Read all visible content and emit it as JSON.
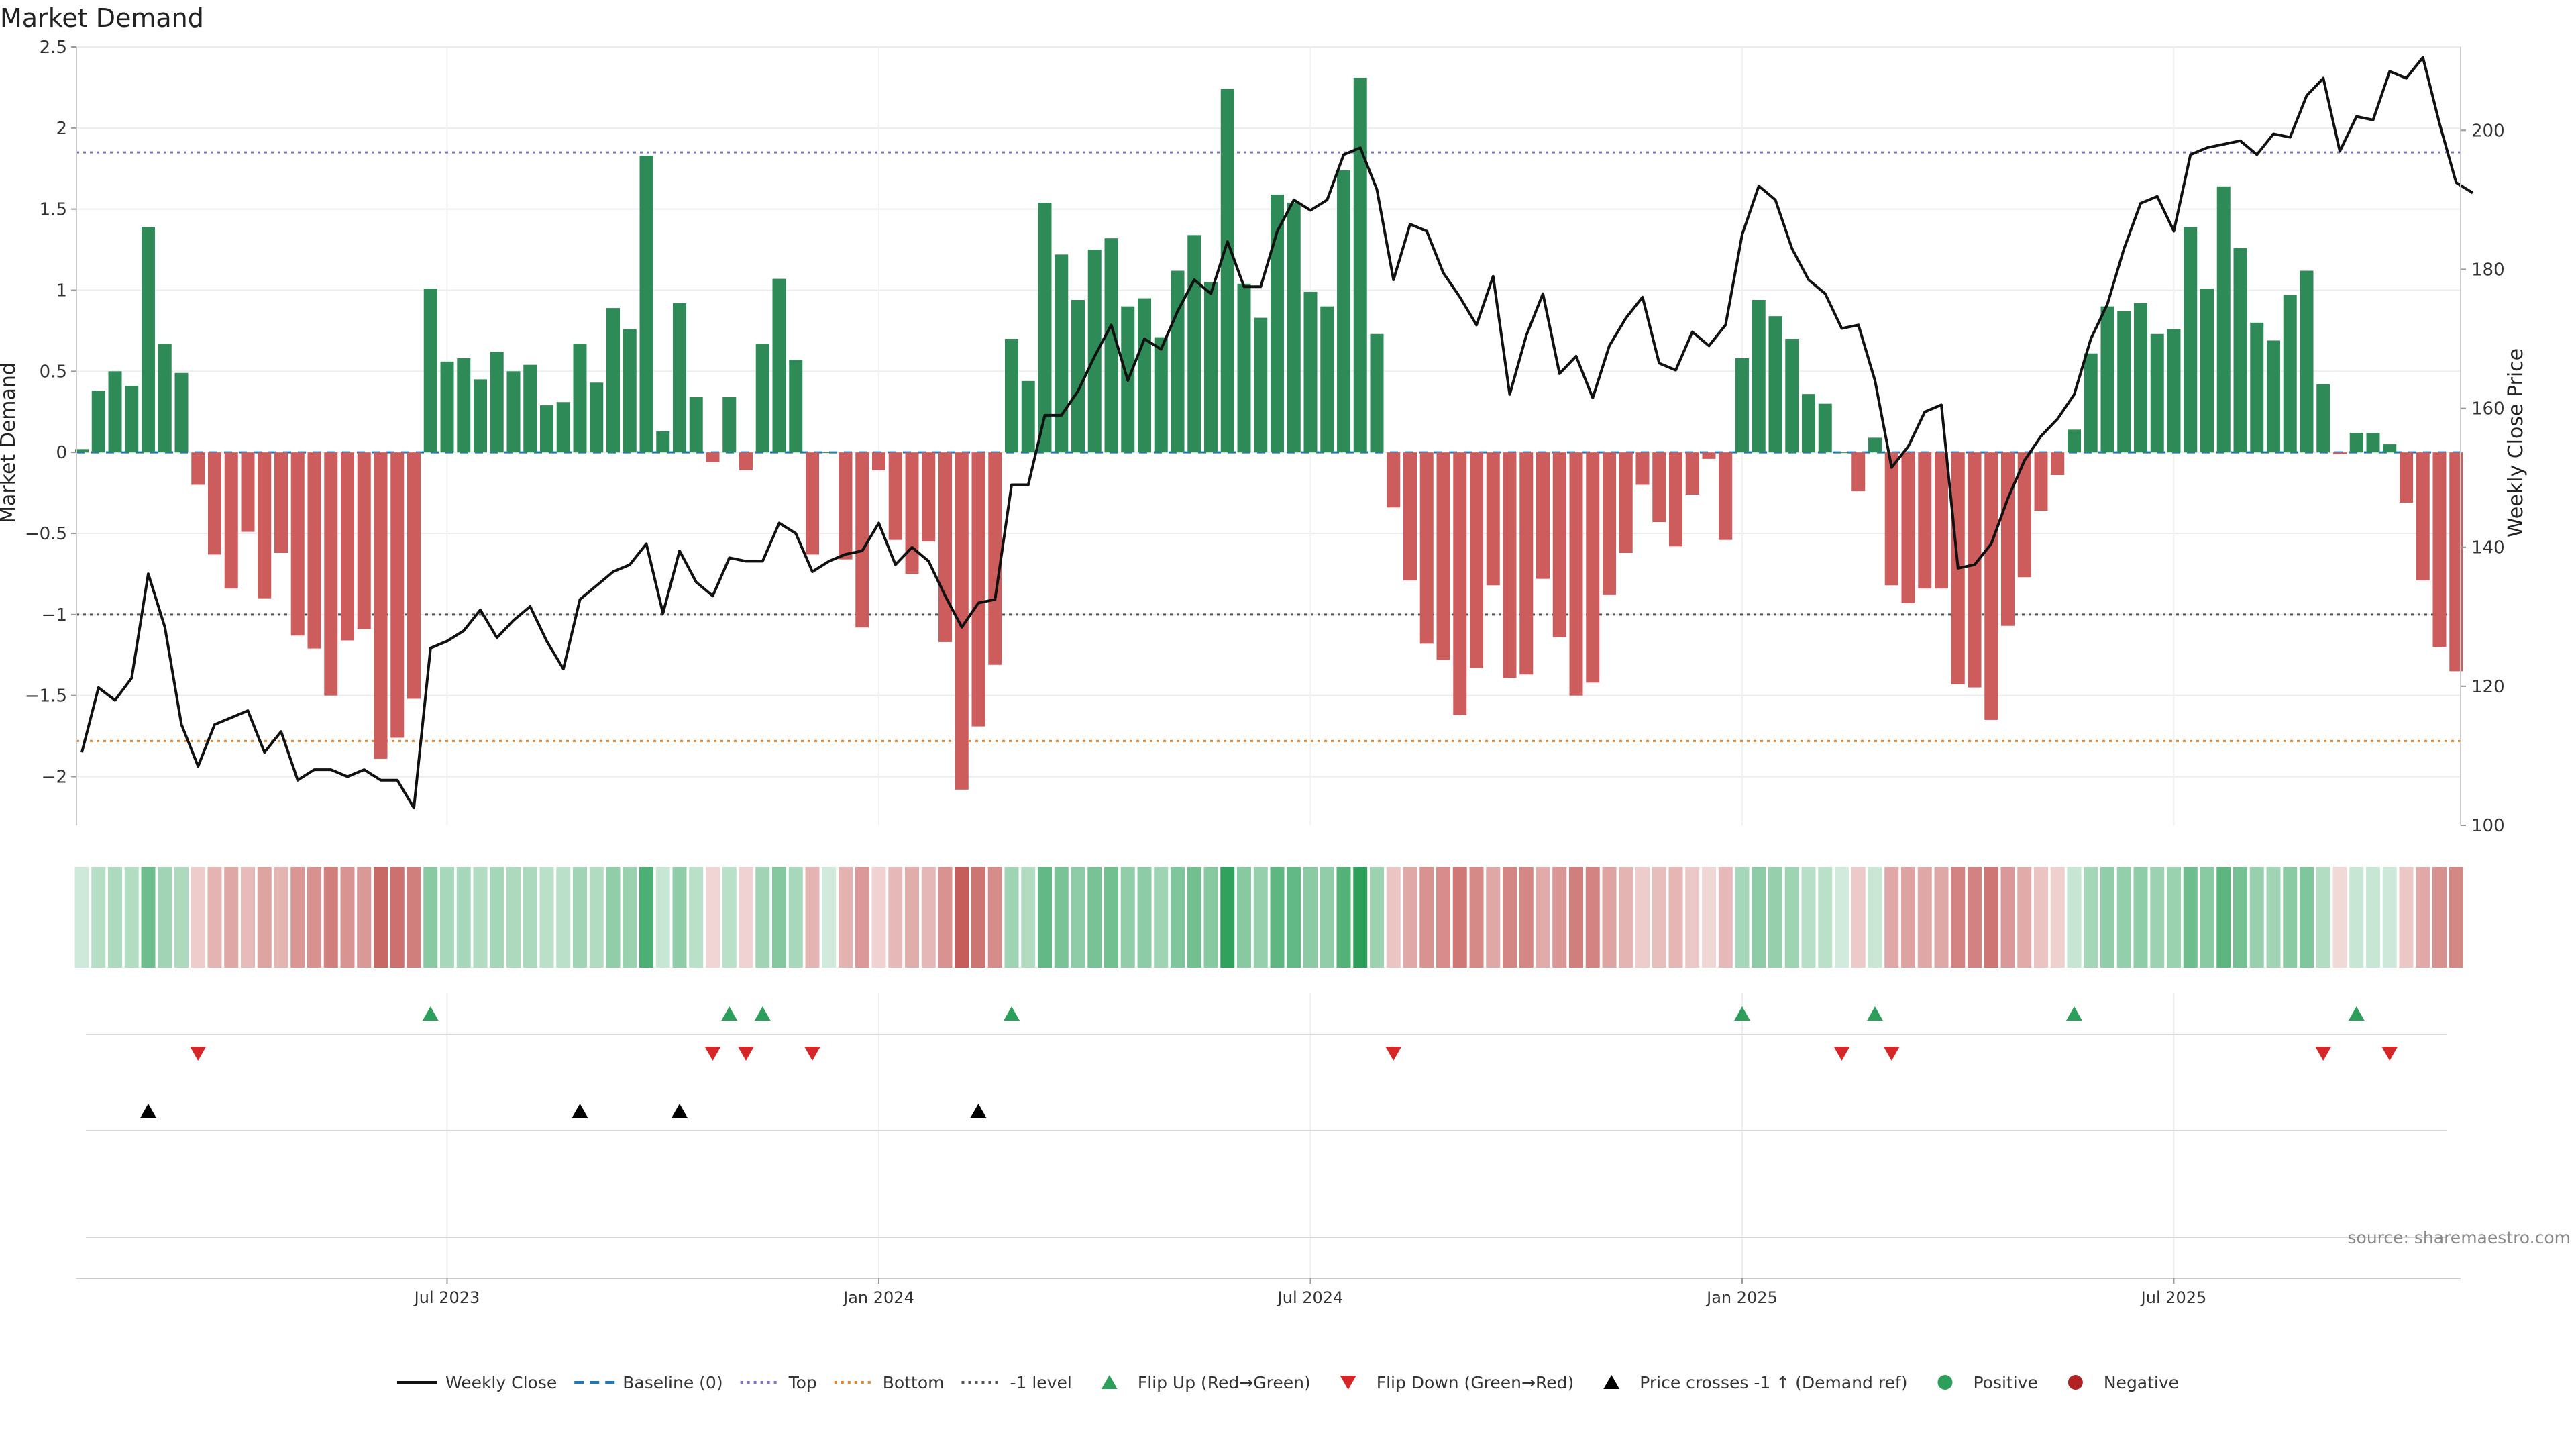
{
  "chart_data": {
    "type": "bar",
    "title": "Market Demand",
    "ylabel": "Market Demand",
    "y2label": "Weekly Close Price",
    "ylim": [
      -2.3,
      2.5
    ],
    "y2lim": [
      100,
      212
    ],
    "y_ticks": [
      {
        "v": 2.5,
        "label": "2.5"
      },
      {
        "v": 2,
        "label": "2"
      },
      {
        "v": 1.5,
        "label": "1.5"
      },
      {
        "v": 1,
        "label": "1"
      },
      {
        "v": 0.5,
        "label": "0.5"
      },
      {
        "v": 0,
        "label": "0"
      },
      {
        "v": -0.5,
        "label": "−0.5"
      },
      {
        "v": -1,
        "label": "−1"
      },
      {
        "v": -1.5,
        "label": "−1.5"
      },
      {
        "v": -2,
        "label": "−2"
      }
    ],
    "y2_ticks": [
      {
        "v": 200,
        "label": "200"
      },
      {
        "v": 180,
        "label": "180"
      },
      {
        "v": 160,
        "label": "160"
      },
      {
        "v": 140,
        "label": "140"
      },
      {
        "v": 120,
        "label": "120"
      },
      {
        "v": 100,
        "label": "100"
      }
    ],
    "x_ticks": [
      {
        "week": 22,
        "label": "Jul 2023"
      },
      {
        "week": 48,
        "label": "Jan 2024"
      },
      {
        "week": 74,
        "label": "Jul 2024"
      },
      {
        "week": 100,
        "label": "Jan 2025"
      },
      {
        "week": 126,
        "label": "Jul 2025"
      }
    ],
    "reference_lines": {
      "top": 1.85,
      "bottom": -1.78,
      "minus_one": -1,
      "baseline": 0
    },
    "demand": [
      0.02,
      0.38,
      0.5,
      0.41,
      1.39,
      0.67,
      0.49,
      -0.2,
      -0.63,
      -0.84,
      -0.49,
      -0.9,
      -0.62,
      -1.13,
      -1.21,
      -1.5,
      -1.16,
      -1.09,
      -1.89,
      -1.76,
      -1.52,
      1.01,
      0.56,
      0.58,
      0.45,
      0.62,
      0.5,
      0.54,
      0.29,
      0.31,
      0.67,
      0.43,
      0.89,
      0.76,
      1.83,
      0.13,
      0.92,
      0.34,
      -0.06,
      0.34,
      -0.11,
      0.67,
      1.07,
      0.57,
      -0.63,
      0.0,
      -0.66,
      -1.08,
      -0.11,
      -0.54,
      -0.75,
      -0.55,
      -1.17,
      -2.08,
      -1.69,
      -1.31,
      0.7,
      0.44,
      1.54,
      1.22,
      0.94,
      1.25,
      1.32,
      0.9,
      0.95,
      0.71,
      1.12,
      1.34,
      1.05,
      2.24,
      1.04,
      0.83,
      1.59,
      1.54,
      0.99,
      0.9,
      1.74,
      2.31,
      0.73,
      -0.34,
      -0.79,
      -1.18,
      -1.28,
      -1.62,
      -1.33,
      -0.82,
      -1.39,
      -1.37,
      -0.78,
      -1.14,
      -1.5,
      -1.42,
      -0.88,
      -0.62,
      -0.2,
      -0.43,
      -0.58,
      -0.26,
      -0.04,
      -0.54,
      0.58,
      0.94,
      0.84,
      0.7,
      0.36,
      0.3,
      0.0,
      -0.24,
      0.09,
      -0.82,
      -0.93,
      -0.84,
      -0.84,
      -1.43,
      -1.45,
      -1.65,
      -1.07,
      -0.77,
      -0.36,
      -0.14,
      0.14,
      0.61,
      0.9,
      0.87,
      0.92,
      0.73,
      0.76,
      1.39,
      1.01,
      1.64,
      1.26,
      0.8,
      0.69,
      0.97,
      1.12,
      0.42,
      -0.01,
      0.12,
      0.12,
      0.05,
      -0.31,
      -0.79,
      -1.2,
      -1.35
    ],
    "close": [
      110.5,
      119.8,
      118.0,
      121.2,
      136.2,
      128.5,
      114.5,
      108.5,
      114.5,
      115.5,
      116.5,
      110.5,
      113.5,
      106.5,
      108.0,
      108.0,
      107.0,
      108.0,
      106.5,
      106.5,
      102.5,
      125.5,
      126.5,
      128.0,
      131.0,
      127.0,
      129.5,
      131.5,
      126.5,
      122.5,
      132.5,
      134.5,
      136.5,
      137.5,
      140.5,
      130.5,
      139.5,
      135.0,
      133.0,
      138.5,
      138.0,
      138.0,
      143.5,
      142.0,
      136.5,
      138.0,
      139.0,
      139.5,
      143.5,
      137.5,
      140.0,
      138.0,
      133.0,
      128.5,
      132.0,
      132.5,
      149.0,
      149.0,
      159.0,
      159.0,
      162.5,
      167.5,
      172.0,
      164.0,
      170.0,
      168.5,
      174.0,
      178.5,
      176.5,
      184.0,
      177.5,
      177.5,
      185.5,
      190.0,
      188.5,
      190.0,
      196.5,
      197.5,
      191.5,
      178.5,
      186.5,
      185.5,
      179.5,
      176.0,
      172.0,
      179.0,
      162.0,
      170.5,
      176.5,
      165.0,
      167.5,
      161.5,
      169.0,
      173.0,
      176.0,
      166.5,
      165.5,
      171.0,
      169.0,
      172.0,
      185.0,
      192.0,
      190.0,
      183.0,
      178.5,
      176.5,
      171.5,
      172.0,
      164.0,
      151.5,
      154.5,
      159.5,
      160.5,
      137.0,
      137.5,
      140.5,
      147.0,
      152.5,
      156.0,
      158.5,
      162.0,
      170.0,
      175.0,
      183.0,
      189.5,
      190.5,
      185.5,
      196.5,
      197.5,
      198.0,
      198.5,
      196.5,
      199.5,
      199.0,
      205.0,
      207.5,
      197.0,
      202.0,
      201.5,
      208.5,
      207.5,
      210.5,
      201.0,
      192.5,
      191.0
    ],
    "flip_up_weeks": [
      21,
      39,
      41,
      56,
      100,
      108,
      120,
      137
    ],
    "flip_down_weeks": [
      7,
      38,
      40,
      44,
      79,
      106,
      109,
      135,
      139
    ],
    "cross_minus_one_weeks": [
      4,
      30,
      36,
      54
    ],
    "legend": {
      "placement": "bottom-center",
      "entries": [
        {
          "name": "Weekly Close",
          "marker": "line",
          "color": "#111111"
        },
        {
          "name": "Baseline (0)",
          "marker": "dash",
          "color": "#1f77b4"
        },
        {
          "name": "Top",
          "marker": "dot-line",
          "color": "#7b74c9"
        },
        {
          "name": "Bottom",
          "marker": "dot-line",
          "color": "#e0852b"
        },
        {
          "name": "-1 level",
          "marker": "dot-line",
          "color": "#555555"
        },
        {
          "name": "Flip Up (Red→Green)",
          "marker": "tri-up",
          "color": "#2ca05a"
        },
        {
          "name": "Flip Down (Green→Red)",
          "marker": "tri-down",
          "color": "#d62728"
        },
        {
          "name": "Price crosses -1 ↑ (Demand ref)",
          "marker": "tri-up",
          "color": "#000000"
        },
        {
          "name": "Positive",
          "marker": "dot",
          "color": "#2ca05a"
        },
        {
          "name": "Negative",
          "marker": "dot",
          "color": "#b22222"
        }
      ]
    },
    "colors": {
      "positive_bar": "#2e8b57",
      "negative_bar": "#cd5c5c",
      "close_line": "#111111",
      "heat_positive": "#2ca05a",
      "heat_negative": "#c0504d"
    },
    "grid": true
  },
  "source": "source: sharemaestro.com"
}
